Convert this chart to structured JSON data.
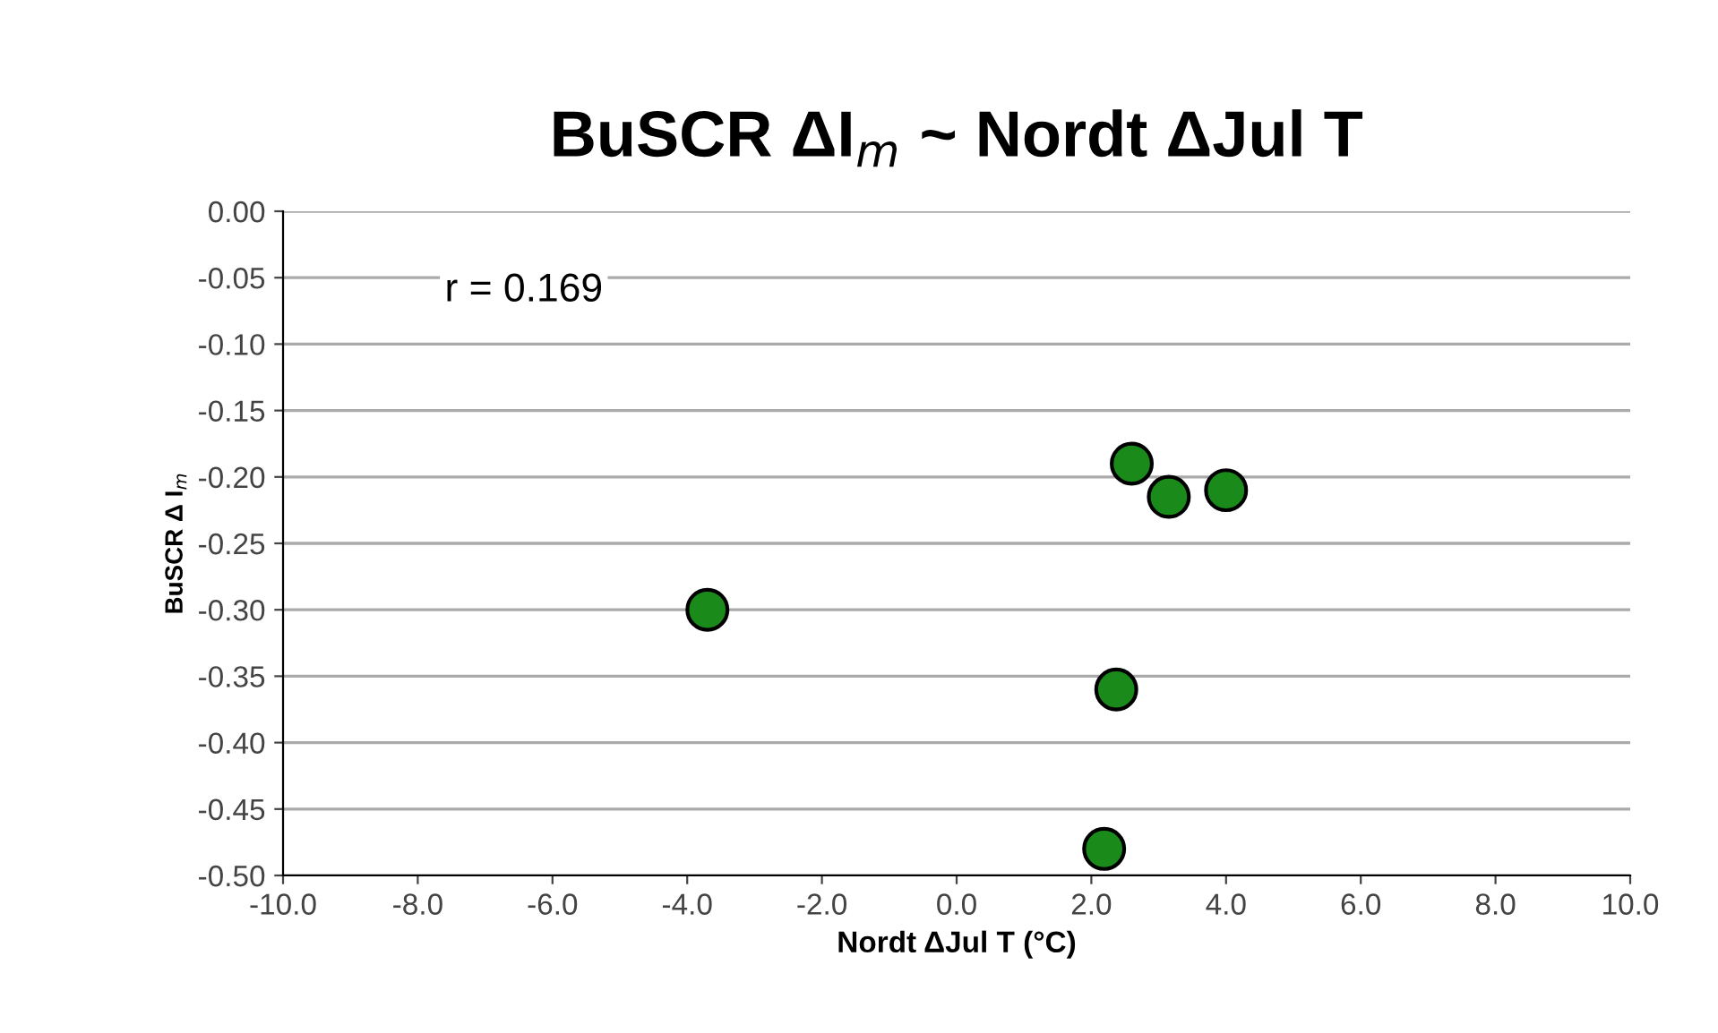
{
  "chart_data": {
    "type": "scatter",
    "title": "BuSCR ΔI$_{m}$ ~ Nordt ΔJul T",
    "xlabel": "Nordt ΔJul T (°C)",
    "ylabel": "BuSCR Δ I$_{m}$",
    "annotations": [
      "r = 0.169"
    ],
    "x": [
      -3.7,
      2.6,
      3.15,
      4.0,
      2.37,
      2.19
    ],
    "series": [
      {
        "color": "#1a8a1a",
        "values": [
          -0.3,
          -0.19,
          -0.215,
          -0.21,
          -0.36,
          -0.48
        ]
      }
    ],
    "xlim": [
      -10,
      10
    ],
    "ylim": [
      -0.5,
      0
    ],
    "xticks": [
      {
        "value": -10,
        "label": "-10.0"
      },
      {
        "value": -8,
        "label": "-8.0"
      },
      {
        "value": -6,
        "label": "-6.0"
      },
      {
        "value": -4,
        "label": "-4.0"
      },
      {
        "value": -2,
        "label": "-2.0"
      },
      {
        "value": 0,
        "label": "0.0"
      },
      {
        "value": 2,
        "label": "2.0"
      },
      {
        "value": 4,
        "label": "4.0"
      },
      {
        "value": 6,
        "label": "6.0"
      },
      {
        "value": 8,
        "label": "8.0"
      },
      {
        "value": 10,
        "label": "10.0"
      }
    ],
    "yticks": [
      {
        "value": 0,
        "label": "0.00"
      },
      {
        "value": -0.05,
        "label": "-0.05"
      },
      {
        "value": -0.1,
        "label": "-0.10"
      },
      {
        "value": -0.15,
        "label": "-0.15"
      },
      {
        "value": -0.2,
        "label": "-0.20"
      },
      {
        "value": -0.25,
        "label": "-0.25"
      },
      {
        "value": -0.3,
        "label": "-0.30"
      },
      {
        "value": -0.35,
        "label": "-0.35"
      },
      {
        "value": -0.4,
        "label": "-0.40"
      },
      {
        "value": -0.45,
        "label": "-0.45"
      },
      {
        "value": -0.5,
        "label": "-0.50"
      }
    ],
    "grid": "y",
    "marker": "circle"
  }
}
